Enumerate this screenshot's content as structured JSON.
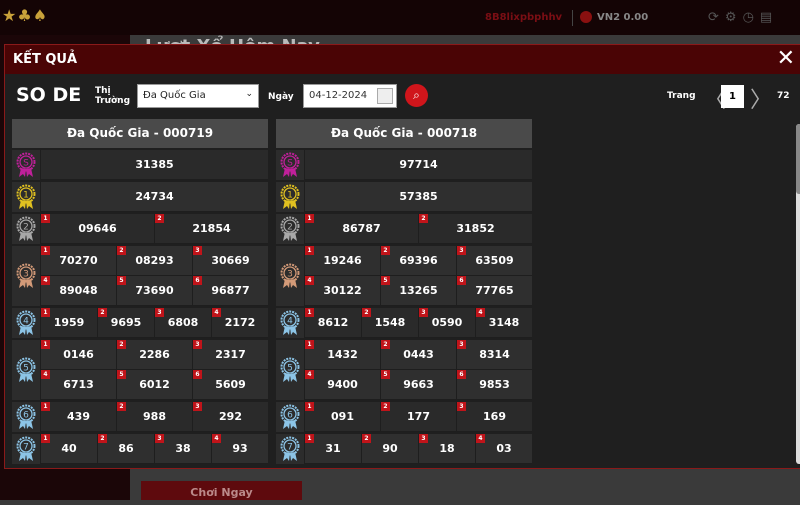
{
  "topbar": {
    "logo": "★♣♠",
    "username": "8B8lixpbphhv",
    "balance": "VN2 0.00",
    "icons": [
      "refresh-icon",
      "settings-icon",
      "history-icon",
      "document-icon"
    ]
  },
  "background": {
    "title": "Lượt Xổ Hôm Nay",
    "play_button": "Chơi Ngay"
  },
  "modal": {
    "title": "KẾT QUẢ",
    "close": "✕"
  },
  "toolbar": {
    "game": "SO DE",
    "market_label_1": "Thị",
    "market_label_2": "Trường",
    "market_value": "Đa Quốc Gia",
    "date_label": "Ngày",
    "date_value": "04-12-2024",
    "page_label": "Trang",
    "page": "1",
    "total_pages": "72"
  },
  "medal_colors": {
    "S": "#c0209a",
    "1": "#e0c020",
    "2": "#a8a8a8",
    "3": "#d39a78",
    "4": "#8cc4e6",
    "5": "#8cc4e6",
    "6": "#8cc4e6",
    "7": "#8cc4e6"
  },
  "results": [
    {
      "title": "Đa Quốc Gia - 000719",
      "prizes": [
        {
          "rank": "S",
          "cols": 1,
          "numbers": [
            "31385"
          ]
        },
        {
          "rank": "1",
          "cols": 1,
          "numbers": [
            "24734"
          ]
        },
        {
          "rank": "2",
          "cols": 2,
          "numbers": [
            "09646",
            "21854"
          ]
        },
        {
          "rank": "3",
          "cols": 3,
          "numbers": [
            "70270",
            "08293",
            "30669",
            "89048",
            "73690",
            "96877"
          ]
        },
        {
          "rank": "4",
          "cols": 4,
          "numbers": [
            "1959",
            "9695",
            "6808",
            "2172"
          ]
        },
        {
          "rank": "5",
          "cols": 3,
          "numbers": [
            "0146",
            "2286",
            "2317",
            "6713",
            "6012",
            "5609"
          ]
        },
        {
          "rank": "6",
          "cols": 3,
          "numbers": [
            "439",
            "988",
            "292"
          ]
        },
        {
          "rank": "7",
          "cols": 4,
          "numbers": [
            "40",
            "86",
            "38",
            "93"
          ]
        }
      ]
    },
    {
      "title": "Đa Quốc Gia - 000718",
      "prizes": [
        {
          "rank": "S",
          "cols": 1,
          "numbers": [
            "97714"
          ]
        },
        {
          "rank": "1",
          "cols": 1,
          "numbers": [
            "57385"
          ]
        },
        {
          "rank": "2",
          "cols": 2,
          "numbers": [
            "86787",
            "31852"
          ]
        },
        {
          "rank": "3",
          "cols": 3,
          "numbers": [
            "19246",
            "69396",
            "63509",
            "30122",
            "13265",
            "77765"
          ]
        },
        {
          "rank": "4",
          "cols": 4,
          "numbers": [
            "8612",
            "1548",
            "0590",
            "3148"
          ]
        },
        {
          "rank": "5",
          "cols": 3,
          "numbers": [
            "1432",
            "0443",
            "8314",
            "9400",
            "9663",
            "9853"
          ]
        },
        {
          "rank": "6",
          "cols": 3,
          "numbers": [
            "091",
            "177",
            "169"
          ]
        },
        {
          "rank": "7",
          "cols": 4,
          "numbers": [
            "31",
            "90",
            "18",
            "03"
          ]
        }
      ]
    }
  ]
}
